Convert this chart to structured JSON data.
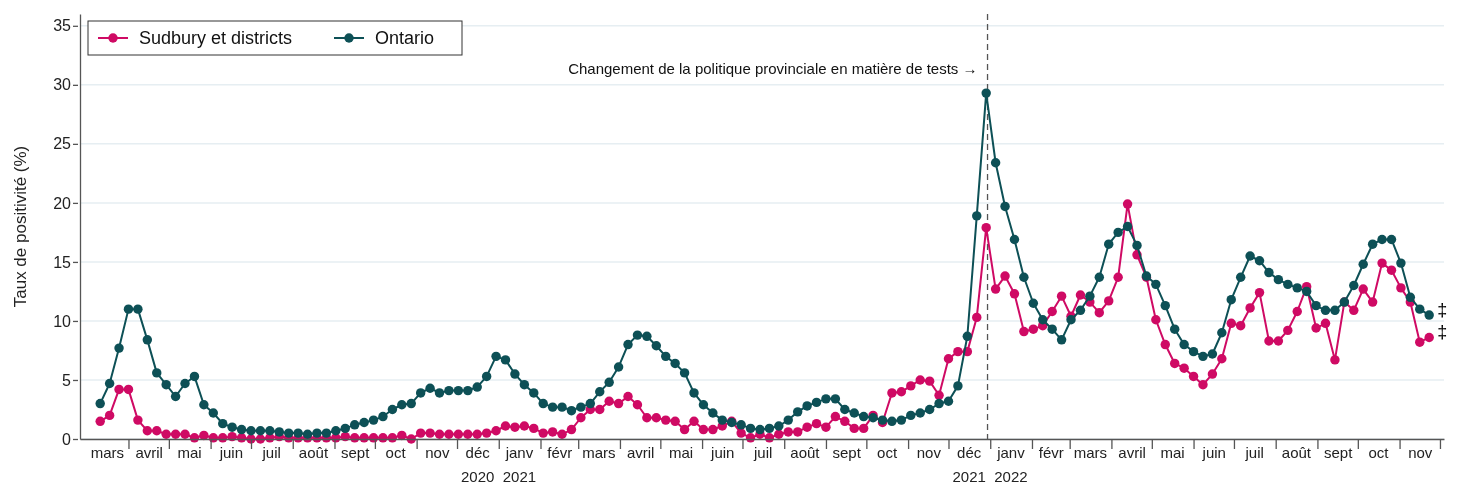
{
  "chart_data": {
    "type": "line",
    "ylabel": "Taux de positivité (%)",
    "ylim": [
      0,
      36
    ],
    "yticks": [
      0,
      5,
      10,
      15,
      20,
      25,
      30,
      35
    ],
    "grid": "y",
    "legend": "top left",
    "marker": "circle",
    "line_style": "solid",
    "xlim": [
      "2020-02-25",
      "2022-12-04"
    ],
    "xticks": [
      {
        "value": "2020-03-16",
        "label": "mars"
      },
      {
        "value": "2020-04-01",
        "label": null
      },
      {
        "value": "2020-04-16",
        "label": "avril"
      },
      {
        "value": "2020-05-01",
        "label": null
      },
      {
        "value": "2020-05-16",
        "label": "mai"
      },
      {
        "value": "2020-06-01",
        "label": null
      },
      {
        "value": "2020-06-16",
        "label": "juin"
      },
      {
        "value": "2020-07-01",
        "label": null
      },
      {
        "value": "2020-07-16",
        "label": "juil"
      },
      {
        "value": "2020-08-01",
        "label": null
      },
      {
        "value": "2020-08-16",
        "label": "août"
      },
      {
        "value": "2020-09-01",
        "label": null
      },
      {
        "value": "2020-09-16",
        "label": "sept"
      },
      {
        "value": "2020-10-01",
        "label": null
      },
      {
        "value": "2020-10-16",
        "label": "oct"
      },
      {
        "value": "2020-11-01",
        "label": null
      },
      {
        "value": "2020-11-16",
        "label": "nov"
      },
      {
        "value": "2020-12-01",
        "label": null
      },
      {
        "value": "2020-12-16",
        "label": "déc\n2020"
      },
      {
        "value": "2021-01-01",
        "label": null
      },
      {
        "value": "2021-01-16",
        "label": "janv\n2021"
      },
      {
        "value": "2021-02-01",
        "label": null
      },
      {
        "value": "2021-02-15",
        "label": "févr"
      },
      {
        "value": "2021-03-01",
        "label": null
      },
      {
        "value": "2021-03-16",
        "label": "mars"
      },
      {
        "value": "2021-04-01",
        "label": null
      },
      {
        "value": "2021-04-16",
        "label": "avril"
      },
      {
        "value": "2021-05-01",
        "label": null
      },
      {
        "value": "2021-05-16",
        "label": "mai"
      },
      {
        "value": "2021-06-01",
        "label": null
      },
      {
        "value": "2021-06-16",
        "label": "juin"
      },
      {
        "value": "2021-07-01",
        "label": null
      },
      {
        "value": "2021-07-16",
        "label": "juil"
      },
      {
        "value": "2021-08-01",
        "label": null
      },
      {
        "value": "2021-08-16",
        "label": "août"
      },
      {
        "value": "2021-09-01",
        "label": null
      },
      {
        "value": "2021-09-16",
        "label": "sept"
      },
      {
        "value": "2021-10-01",
        "label": null
      },
      {
        "value": "2021-10-16",
        "label": "oct"
      },
      {
        "value": "2021-11-01",
        "label": null
      },
      {
        "value": "2021-11-16",
        "label": "nov"
      },
      {
        "value": "2021-12-01",
        "label": null
      },
      {
        "value": "2021-12-16",
        "label": "déc\n2021"
      },
      {
        "value": "2022-01-01",
        "label": null
      },
      {
        "value": "2022-01-16",
        "label": "janv\n2022"
      },
      {
        "value": "2022-02-01",
        "label": null
      },
      {
        "value": "2022-02-15",
        "label": "févr"
      },
      {
        "value": "2022-03-01",
        "label": null
      },
      {
        "value": "2022-03-16",
        "label": "mars"
      },
      {
        "value": "2022-04-01",
        "label": null
      },
      {
        "value": "2022-04-16",
        "label": "avril"
      },
      {
        "value": "2022-05-01",
        "label": null
      },
      {
        "value": "2022-05-16",
        "label": "mai"
      },
      {
        "value": "2022-06-01",
        "label": null
      },
      {
        "value": "2022-06-16",
        "label": "juin"
      },
      {
        "value": "2022-07-01",
        "label": null
      },
      {
        "value": "2022-07-16",
        "label": "juil"
      },
      {
        "value": "2022-08-01",
        "label": null
      },
      {
        "value": "2022-08-16",
        "label": "août"
      },
      {
        "value": "2022-09-01",
        "label": null
      },
      {
        "value": "2022-09-16",
        "label": "sept"
      },
      {
        "value": "2022-10-01",
        "label": null
      },
      {
        "value": "2022-10-16",
        "label": "oct"
      },
      {
        "value": "2022-11-01",
        "label": null
      },
      {
        "value": "2022-11-16",
        "label": "nov"
      },
      {
        "value": "2022-12-01",
        "label": null
      }
    ],
    "x": [
      "2020-03-11",
      "2020-03-18",
      "2020-03-25",
      "2020-04-01",
      "2020-04-08",
      "2020-04-15",
      "2020-04-22",
      "2020-04-29",
      "2020-05-06",
      "2020-05-13",
      "2020-05-20",
      "2020-05-27",
      "2020-06-03",
      "2020-06-10",
      "2020-06-17",
      "2020-06-24",
      "2020-07-01",
      "2020-07-08",
      "2020-07-15",
      "2020-07-22",
      "2020-07-29",
      "2020-08-05",
      "2020-08-12",
      "2020-08-19",
      "2020-08-26",
      "2020-09-02",
      "2020-09-09",
      "2020-09-16",
      "2020-09-23",
      "2020-09-30",
      "2020-10-07",
      "2020-10-14",
      "2020-10-21",
      "2020-10-28",
      "2020-11-04",
      "2020-11-11",
      "2020-11-18",
      "2020-11-25",
      "2020-12-02",
      "2020-12-09",
      "2020-12-16",
      "2020-12-23",
      "2020-12-30",
      "2021-01-06",
      "2021-01-13",
      "2021-01-20",
      "2021-01-27",
      "2021-02-03",
      "2021-02-10",
      "2021-02-17",
      "2021-02-24",
      "2021-03-03",
      "2021-03-10",
      "2021-03-17",
      "2021-03-24",
      "2021-03-31",
      "2021-04-07",
      "2021-04-14",
      "2021-04-21",
      "2021-04-28",
      "2021-05-05",
      "2021-05-12",
      "2021-05-19",
      "2021-05-26",
      "2021-06-02",
      "2021-06-09",
      "2021-06-16",
      "2021-06-23",
      "2021-06-30",
      "2021-07-07",
      "2021-07-14",
      "2021-07-21",
      "2021-07-28",
      "2021-08-04",
      "2021-08-11",
      "2021-08-18",
      "2021-08-25",
      "2021-09-01",
      "2021-09-08",
      "2021-09-15",
      "2021-09-22",
      "2021-09-29",
      "2021-10-06",
      "2021-10-13",
      "2021-10-20",
      "2021-10-27",
      "2021-11-03",
      "2021-11-10",
      "2021-11-17",
      "2021-11-24",
      "2021-12-01",
      "2021-12-08",
      "2021-12-15",
      "2021-12-22",
      "2021-12-29",
      "2022-01-05",
      "2022-01-12",
      "2022-01-19",
      "2022-01-26",
      "2022-02-02",
      "2022-02-09",
      "2022-02-16",
      "2022-02-23",
      "2022-03-02",
      "2022-03-09",
      "2022-03-16",
      "2022-03-23",
      "2022-03-30",
      "2022-04-06",
      "2022-04-13",
      "2022-04-20",
      "2022-04-27",
      "2022-05-04",
      "2022-05-11",
      "2022-05-18",
      "2022-05-25",
      "2022-06-01",
      "2022-06-08",
      "2022-06-15",
      "2022-06-22",
      "2022-06-29",
      "2022-07-06",
      "2022-07-13",
      "2022-07-20",
      "2022-07-27",
      "2022-08-03",
      "2022-08-10",
      "2022-08-17",
      "2022-08-24",
      "2022-08-31",
      "2022-09-07",
      "2022-09-14",
      "2022-09-21",
      "2022-09-28",
      "2022-10-05",
      "2022-10-12",
      "2022-10-19",
      "2022-10-26",
      "2022-11-02",
      "2022-11-09",
      "2022-11-16",
      "2022-11-23"
    ],
    "series": [
      {
        "name": "Sudbury et districts",
        "color": "#cf0a64",
        "values": [
          1.5,
          2.0,
          4.2,
          4.2,
          1.6,
          0.7,
          0.7,
          0.4,
          0.4,
          0.4,
          0.1,
          0.3,
          0.1,
          0.1,
          0.2,
          0.1,
          0.0,
          0.0,
          0.1,
          0.2,
          0.1,
          0.1,
          0.1,
          0.1,
          0.1,
          0.1,
          0.2,
          0.1,
          0.1,
          0.1,
          0.1,
          0.1,
          0.3,
          0.0,
          0.5,
          0.5,
          0.4,
          0.4,
          0.4,
          0.4,
          0.4,
          0.5,
          0.7,
          1.1,
          1.0,
          1.1,
          0.9,
          0.5,
          0.6,
          0.4,
          0.8,
          1.8,
          2.5,
          2.5,
          3.2,
          3.0,
          3.6,
          2.9,
          1.8,
          1.8,
          1.6,
          1.5,
          0.8,
          1.5,
          0.8,
          0.8,
          1.1,
          1.5,
          0.5,
          0.1,
          0.4,
          0.1,
          0.4,
          0.6,
          0.6,
          1.0,
          1.3,
          1.0,
          1.9,
          1.5,
          0.9,
          0.9,
          2.0,
          1.4,
          3.9,
          4.0,
          4.5,
          5.0,
          4.9,
          3.7,
          6.8,
          7.4,
          7.4,
          10.3,
          17.9,
          12.7,
          13.8,
          12.3,
          9.1,
          9.3,
          9.6,
          10.8,
          12.1,
          10.4,
          12.2,
          11.6,
          10.7,
          11.7,
          13.7,
          19.9,
          15.6,
          13.7,
          10.1,
          8.0,
          6.4,
          6.0,
          5.3,
          4.6,
          5.5,
          6.8,
          9.8,
          9.6,
          11.1,
          12.4,
          8.3,
          8.3,
          9.2,
          10.8,
          12.9,
          9.4,
          9.8,
          6.7,
          11.6,
          10.9,
          12.7,
          11.6,
          14.9,
          14.3,
          12.8,
          11.6,
          8.2,
          8.6
        ]
      },
      {
        "name": "Ontario",
        "color": "#0d5056",
        "values": [
          3.0,
          4.7,
          7.7,
          11.0,
          11.0,
          8.4,
          5.6,
          4.6,
          3.6,
          4.7,
          5.3,
          2.9,
          2.2,
          1.3,
          1.0,
          0.8,
          0.7,
          0.7,
          0.7,
          0.6,
          0.5,
          0.5,
          0.4,
          0.5,
          0.5,
          0.7,
          0.9,
          1.2,
          1.4,
          1.6,
          1.9,
          2.5,
          2.9,
          3.0,
          3.9,
          4.3,
          3.9,
          4.1,
          4.1,
          4.1,
          4.4,
          5.3,
          7.0,
          6.7,
          5.5,
          4.6,
          3.9,
          3.0,
          2.7,
          2.7,
          2.4,
          2.7,
          3.0,
          4.0,
          4.8,
          6.1,
          8.0,
          8.8,
          8.7,
          7.9,
          7.0,
          6.4,
          5.6,
          3.9,
          2.9,
          2.2,
          1.6,
          1.4,
          1.2,
          0.9,
          0.8,
          0.9,
          1.1,
          1.6,
          2.3,
          2.8,
          3.1,
          3.4,
          3.4,
          2.5,
          2.2,
          1.9,
          1.8,
          1.6,
          1.5,
          1.6,
          2.0,
          2.2,
          2.5,
          3.0,
          3.2,
          4.5,
          8.7,
          18.9,
          29.3,
          23.4,
          19.7,
          16.9,
          13.7,
          11.5,
          10.1,
          9.3,
          8.4,
          10.1,
          10.9,
          12.1,
          13.7,
          16.5,
          17.5,
          18.0,
          16.4,
          13.8,
          13.1,
          11.3,
          9.3,
          8.0,
          7.4,
          7.0,
          7.2,
          9.0,
          11.8,
          13.7,
          15.5,
          15.1,
          14.1,
          13.5,
          13.1,
          12.8,
          12.5,
          11.3,
          10.9,
          10.9,
          11.6,
          13.0,
          14.8,
          16.5,
          16.9,
          16.9,
          14.9,
          12.0,
          11.0,
          10.5
        ]
      }
    ],
    "ref_lines": [
      {
        "axis": "x",
        "value": "2021-12-30",
        "label": "Changement de la politique provinciale en matière de tests →",
        "color": "#555555",
        "line_style": "dashed"
      }
    ],
    "annotations": [
      {
        "text": "‡",
        "x": "2022-11-23",
        "y": 10.5
      },
      {
        "text": "‡",
        "x": "2022-11-23",
        "y": 8.6
      }
    ]
  }
}
